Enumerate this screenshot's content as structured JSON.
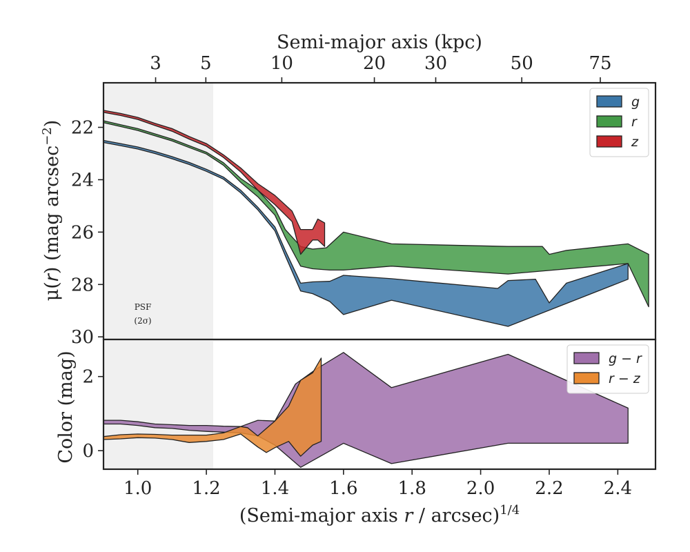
{
  "chart_data": [
    {
      "panel": "surface-brightness",
      "type": "area",
      "ylabel_parts": {
        "pre": "μ(",
        "var": "r",
        "post": ") (mag arcsec",
        "exp": "−2",
        "close": ")"
      },
      "top_axis_label": "Semi-major axis (kpc)",
      "top_ticks_kpc": [
        "3",
        "5",
        "10",
        "20",
        "30",
        "50",
        "75"
      ],
      "ylim": [
        30.1,
        20.3
      ],
      "y_ticks": [
        "22",
        "24",
        "26",
        "28",
        "30"
      ],
      "psf_shade_x_max": 1.22,
      "psf_label": [
        "PSF",
        "(2σ)"
      ],
      "legend": {
        "position": "top-right",
        "entries": [
          "g",
          "r",
          "z"
        ]
      },
      "colors": {
        "g": "#3b77a8",
        "r": "#449b48",
        "z": "#c7252a"
      },
      "series": [
        {
          "name": "g",
          "upper": [
            [
              0.9,
              22.5
            ],
            [
              0.95,
              22.62
            ],
            [
              1.0,
              22.75
            ],
            [
              1.05,
              22.92
            ],
            [
              1.1,
              23.12
            ],
            [
              1.15,
              23.34
            ],
            [
              1.2,
              23.6
            ],
            [
              1.25,
              23.9
            ],
            [
              1.3,
              24.4
            ],
            [
              1.35,
              25.05
            ],
            [
              1.4,
              25.8
            ],
            [
              1.43,
              26.7
            ],
            [
              1.475,
              27.95
            ],
            [
              1.51,
              27.9
            ],
            [
              1.56,
              27.88
            ],
            [
              1.6,
              27.65
            ],
            [
              1.74,
              27.78
            ],
            [
              2.05,
              28.15
            ],
            [
              2.08,
              27.85
            ],
            [
              2.16,
              27.8
            ],
            [
              2.2,
              28.7
            ],
            [
              2.25,
              27.95
            ],
            [
              2.43,
              27.2
            ]
          ],
          "lower": [
            [
              0.9,
              22.58
            ],
            [
              0.95,
              22.7
            ],
            [
              1.0,
              22.83
            ],
            [
              1.05,
              23.0
            ],
            [
              1.1,
              23.2
            ],
            [
              1.15,
              23.42
            ],
            [
              1.2,
              23.68
            ],
            [
              1.25,
              23.98
            ],
            [
              1.3,
              24.5
            ],
            [
              1.35,
              25.15
            ],
            [
              1.4,
              25.95
            ],
            [
              1.43,
              26.9
            ],
            [
              1.475,
              28.25
            ],
            [
              1.51,
              28.35
            ],
            [
              1.56,
              28.65
            ],
            [
              1.6,
              29.15
            ],
            [
              1.74,
              28.6
            ],
            [
              2.08,
              29.6
            ],
            [
              2.43,
              27.8
            ]
          ]
        },
        {
          "name": "r",
          "upper": [
            [
              0.9,
              21.75
            ],
            [
              0.95,
              21.9
            ],
            [
              1.0,
              22.05
            ],
            [
              1.05,
              22.25
            ],
            [
              1.1,
              22.45
            ],
            [
              1.15,
              22.7
            ],
            [
              1.2,
              22.95
            ],
            [
              1.25,
              23.35
            ],
            [
              1.3,
              23.95
            ],
            [
              1.35,
              24.4
            ],
            [
              1.4,
              25.1
            ],
            [
              1.43,
              25.9
            ],
            [
              1.475,
              26.55
            ],
            [
              1.51,
              26.65
            ],
            [
              1.55,
              26.6
            ],
            [
              1.6,
              26.0
            ],
            [
              1.74,
              26.45
            ],
            [
              2.08,
              26.55
            ],
            [
              2.18,
              26.55
            ],
            [
              2.2,
              26.85
            ],
            [
              2.25,
              26.7
            ],
            [
              2.43,
              26.45
            ],
            [
              2.49,
              26.85
            ]
          ],
          "lower": [
            [
              0.9,
              21.82
            ],
            [
              0.95,
              21.97
            ],
            [
              1.0,
              22.12
            ],
            [
              1.05,
              22.32
            ],
            [
              1.1,
              22.52
            ],
            [
              1.15,
              22.77
            ],
            [
              1.2,
              23.02
            ],
            [
              1.25,
              23.45
            ],
            [
              1.3,
              24.1
            ],
            [
              1.35,
              24.65
            ],
            [
              1.4,
              25.35
            ],
            [
              1.43,
              26.2
            ],
            [
              1.475,
              27.3
            ],
            [
              1.51,
              27.4
            ],
            [
              1.56,
              27.45
            ],
            [
              1.6,
              27.45
            ],
            [
              1.74,
              27.3
            ],
            [
              2.08,
              27.6
            ],
            [
              2.43,
              27.2
            ],
            [
              2.49,
              28.85
            ]
          ]
        },
        {
          "name": "z",
          "upper": [
            [
              0.9,
              21.35
            ],
            [
              0.95,
              21.47
            ],
            [
              1.0,
              21.62
            ],
            [
              1.05,
              21.85
            ],
            [
              1.1,
              22.05
            ],
            [
              1.15,
              22.35
            ],
            [
              1.2,
              22.62
            ],
            [
              1.25,
              23.05
            ],
            [
              1.3,
              23.55
            ],
            [
              1.35,
              24.15
            ],
            [
              1.4,
              24.6
            ],
            [
              1.45,
              25.2
            ],
            [
              1.475,
              25.9
            ],
            [
              1.51,
              25.9
            ],
            [
              1.525,
              25.5
            ],
            [
              1.545,
              25.65
            ]
          ],
          "lower": [
            [
              0.9,
              21.43
            ],
            [
              0.95,
              21.55
            ],
            [
              1.0,
              21.7
            ],
            [
              1.05,
              21.93
            ],
            [
              1.1,
              22.15
            ],
            [
              1.15,
              22.45
            ],
            [
              1.2,
              22.72
            ],
            [
              1.25,
              23.15
            ],
            [
              1.3,
              23.7
            ],
            [
              1.35,
              24.4
            ],
            [
              1.4,
              24.95
            ],
            [
              1.45,
              25.6
            ],
            [
              1.475,
              26.85
            ],
            [
              1.51,
              26.3
            ],
            [
              1.525,
              26.3
            ],
            [
              1.545,
              26.55
            ]
          ]
        }
      ]
    },
    {
      "panel": "color",
      "type": "area",
      "ylabel": "Color (mag)",
      "xlabel_parts": {
        "pre": "(Semi-major axis ",
        "var": "r",
        "post": " / arcsec)",
        "exp": "1/4"
      },
      "ylim": [
        -0.5,
        3.0
      ],
      "y_ticks": [
        "0",
        "2"
      ],
      "xlim": [
        0.9,
        2.51
      ],
      "x_ticks": [
        "1.0",
        "1.2",
        "1.4",
        "1.6",
        "1.8",
        "2.0",
        "2.2",
        "2.4"
      ],
      "legend": {
        "position": "top-right",
        "entries": [
          "g − r",
          "r − z"
        ]
      },
      "colors": {
        "g_minus_r": "#a070ab",
        "r_minus_z": "#e98b33"
      },
      "series": [
        {
          "name": "g − r",
          "upper": [
            [
              0.9,
              0.82
            ],
            [
              0.95,
              0.82
            ],
            [
              1.0,
              0.78
            ],
            [
              1.05,
              0.72
            ],
            [
              1.1,
              0.7
            ],
            [
              1.15,
              0.68
            ],
            [
              1.2,
              0.68
            ],
            [
              1.25,
              0.66
            ],
            [
              1.3,
              0.65
            ],
            [
              1.35,
              0.82
            ],
            [
              1.4,
              0.8
            ],
            [
              1.46,
              1.8
            ],
            [
              1.52,
              2.2
            ],
            [
              1.6,
              2.65
            ],
            [
              1.74,
              1.7
            ],
            [
              2.08,
              2.6
            ],
            [
              2.43,
              1.15
            ]
          ],
          "lower": [
            [
              0.9,
              0.72
            ],
            [
              0.95,
              0.72
            ],
            [
              1.0,
              0.68
            ],
            [
              1.05,
              0.62
            ],
            [
              1.1,
              0.6
            ],
            [
              1.15,
              0.55
            ],
            [
              1.2,
              0.52
            ],
            [
              1.25,
              0.5
            ],
            [
              1.3,
              0.48
            ],
            [
              1.35,
              0.4
            ],
            [
              1.4,
              0.15
            ],
            [
              1.475,
              -0.45
            ],
            [
              1.6,
              0.2
            ],
            [
              1.74,
              -0.35
            ],
            [
              2.08,
              0.2
            ],
            [
              2.43,
              0.2
            ]
          ]
        },
        {
          "name": "r − z",
          "upper": [
            [
              0.9,
              0.38
            ],
            [
              0.95,
              0.43
            ],
            [
              1.0,
              0.45
            ],
            [
              1.05,
              0.44
            ],
            [
              1.1,
              0.42
            ],
            [
              1.15,
              0.42
            ],
            [
              1.2,
              0.42
            ],
            [
              1.25,
              0.48
            ],
            [
              1.3,
              0.65
            ],
            [
              1.32,
              0.62
            ],
            [
              1.35,
              0.4
            ],
            [
              1.4,
              0.8
            ],
            [
              1.44,
              1.2
            ],
            [
              1.475,
              1.9
            ],
            [
              1.51,
              2.1
            ],
            [
              1.535,
              2.5
            ]
          ],
          "lower": [
            [
              0.9,
              0.3
            ],
            [
              0.95,
              0.32
            ],
            [
              1.0,
              0.35
            ],
            [
              1.05,
              0.34
            ],
            [
              1.1,
              0.3
            ],
            [
              1.15,
              0.22
            ],
            [
              1.2,
              0.25
            ],
            [
              1.25,
              0.3
            ],
            [
              1.3,
              0.45
            ],
            [
              1.35,
              0.1
            ],
            [
              1.375,
              -0.05
            ],
            [
              1.4,
              0.08
            ],
            [
              1.44,
              0.25
            ],
            [
              1.475,
              -0.15
            ],
            [
              1.51,
              0.15
            ],
            [
              1.535,
              0.25
            ]
          ]
        }
      ]
    }
  ]
}
